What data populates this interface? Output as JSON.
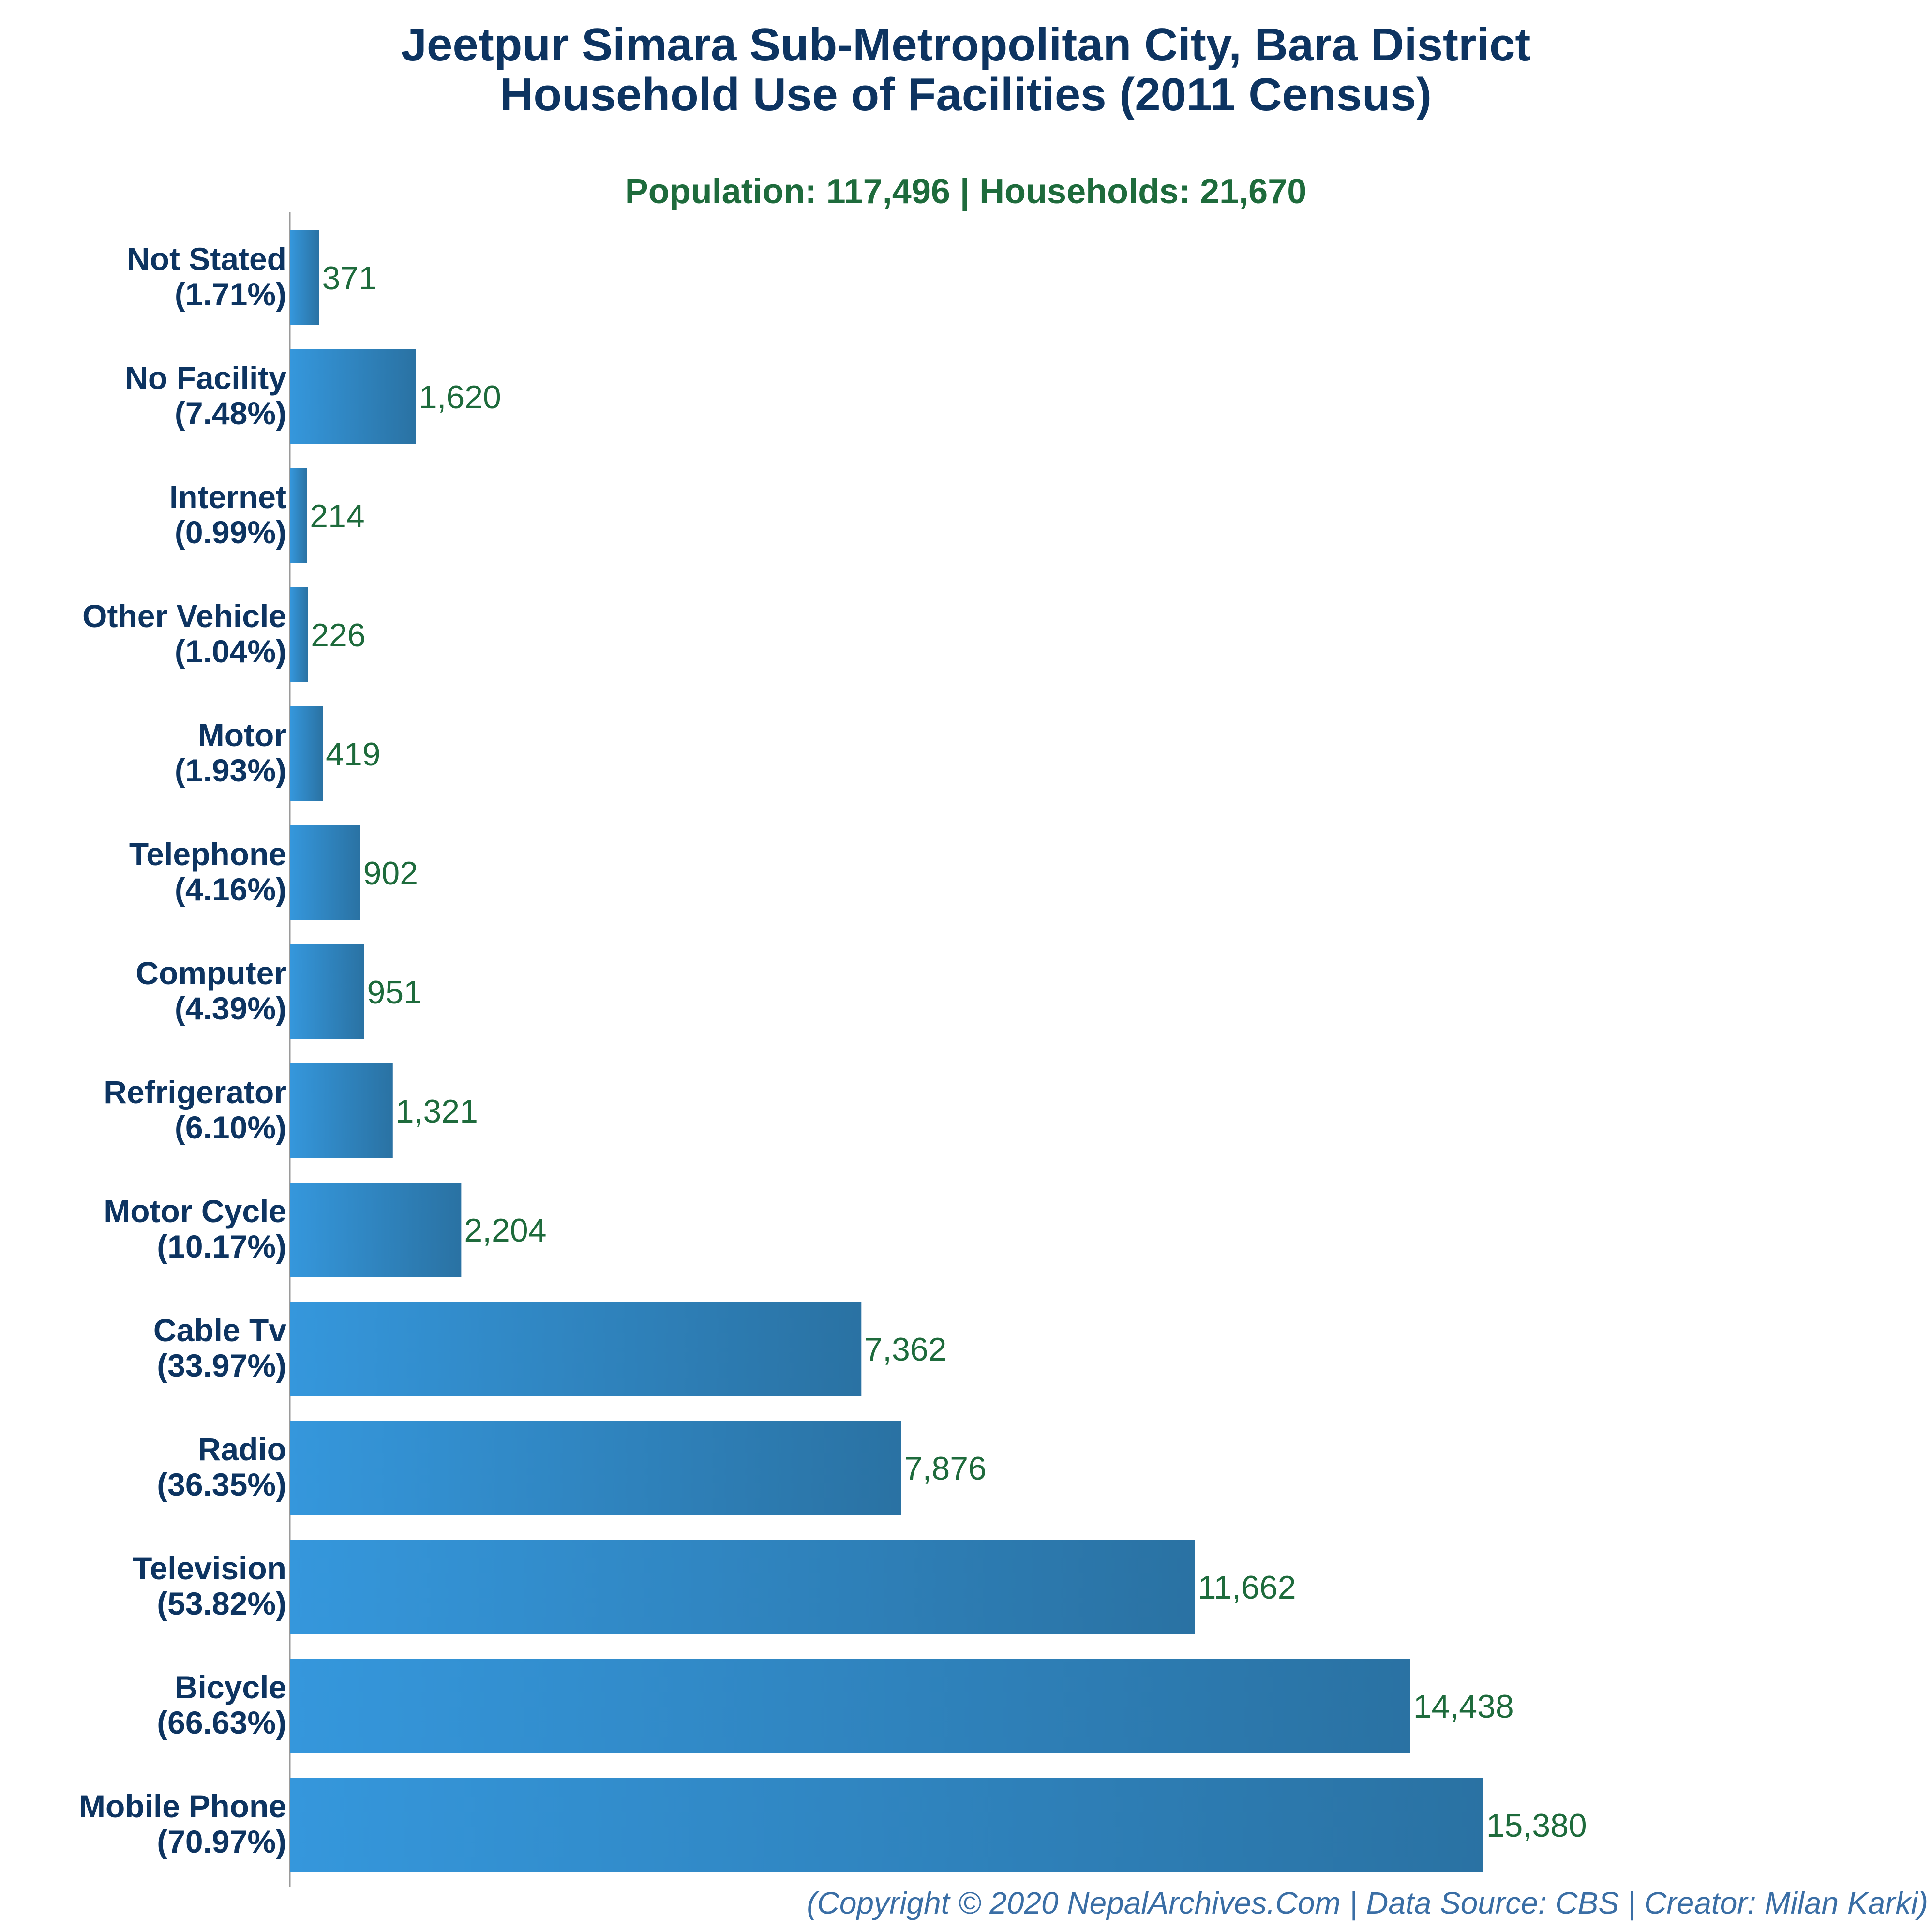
{
  "chart_data": {
    "type": "bar",
    "orientation": "horizontal",
    "title_lines": [
      "Jeetpur Simara Sub-Metropolitan City, Bara District",
      "Household Use of Facilities (2011 Census)"
    ],
    "subtitle": "Population: 117,496 | Households: 21,670",
    "footer": "(Copyright © 2020 NepalArchives.Com | Data Source: CBS | Creator: Milan Karki)",
    "categories": [
      "Not Stated",
      "No Facility",
      "Internet",
      "Other Vehicle",
      "Motor",
      "Telephone",
      "Computer",
      "Refrigerator",
      "Motor Cycle",
      "Cable Tv",
      "Radio",
      "Television",
      "Bicycle",
      "Mobile Phone"
    ],
    "percent_labels": [
      "(1.71%)",
      "(7.48%)",
      "(0.99%)",
      "(1.04%)",
      "(1.93%)",
      "(4.16%)",
      "(4.39%)",
      "(6.10%)",
      "(10.17%)",
      "(33.97%)",
      "(36.35%)",
      "(53.82%)",
      "(66.63%)",
      "(70.97%)"
    ],
    "values": [
      371,
      1620,
      214,
      226,
      419,
      902,
      951,
      1321,
      2204,
      7362,
      7876,
      11662,
      14438,
      15380
    ],
    "value_labels": [
      "371",
      "1,620",
      "214",
      "226",
      "419",
      "902",
      "951",
      "1,321",
      "2,204",
      "7,362",
      "7,876",
      "11,662",
      "14,438",
      "15,380"
    ],
    "xlim": [
      0,
      18000
    ],
    "grid": false,
    "legend": "none",
    "colors": {
      "bar_light": "#3597dc",
      "bar_dark": "#2a72a3",
      "title": "#0d3461",
      "subtitle": "#1e6b3c",
      "value": "#1e6b3c",
      "footer": "#3a6ea5"
    }
  }
}
